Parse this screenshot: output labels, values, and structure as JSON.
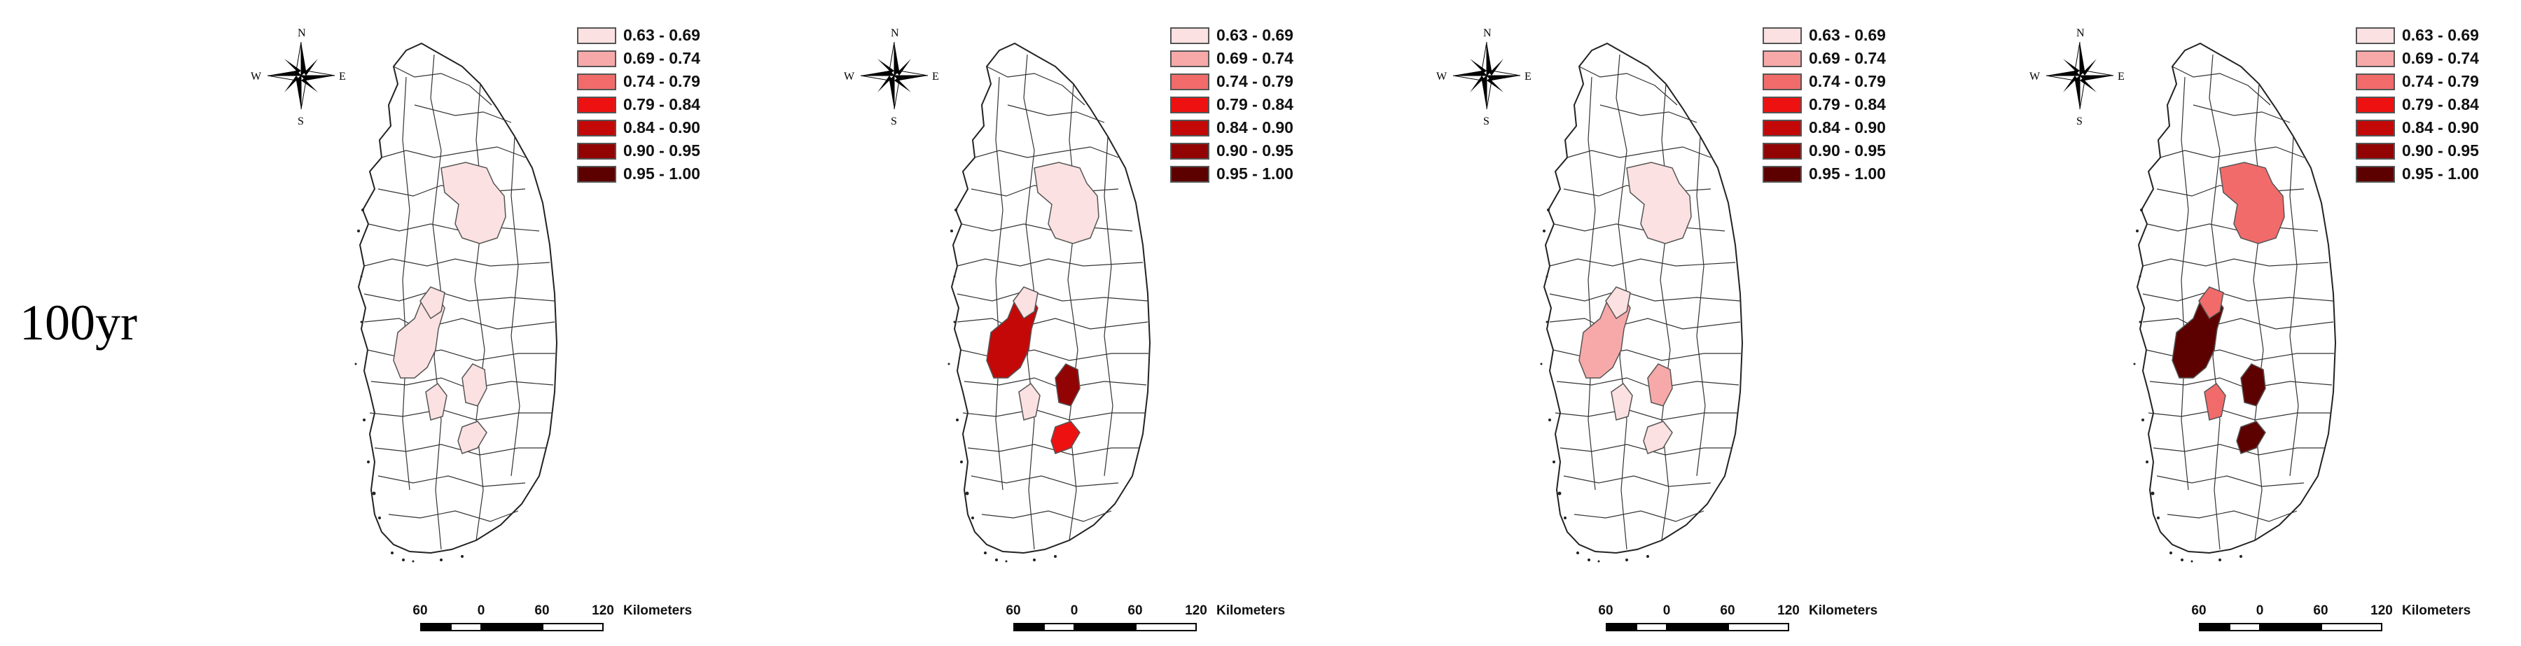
{
  "row_label": "100yr",
  "compass": {
    "n": "N",
    "s": "S",
    "e": "E",
    "w": "W",
    "icon": "north-arrow-compass-icon"
  },
  "legend": [
    {
      "label": "0.63 - 0.69",
      "color": "#fbe1e1"
    },
    {
      "label": "0.69 - 0.74",
      "color": "#f7a9a9"
    },
    {
      "label": "0.74 - 0.79",
      "color": "#f26b6b"
    },
    {
      "label": "0.79 - 0.84",
      "color": "#ee1111"
    },
    {
      "label": "0.84 - 0.90",
      "color": "#c40808"
    },
    {
      "label": "0.90 - 0.95",
      "color": "#920404"
    },
    {
      "label": "0.95 - 1.00",
      "color": "#5c0000"
    }
  ],
  "scale": {
    "ticks": [
      "60",
      "0",
      "60",
      "120"
    ],
    "unit": "Kilometers"
  },
  "panels": [
    {
      "zones": {
        "northeast": 0,
        "midwest": 0,
        "central": 0,
        "east": 0,
        "southwest": 0,
        "southeast": 0
      }
    },
    {
      "zones": {
        "northeast": 0,
        "midwest": 4,
        "central": 0,
        "east": 5,
        "southwest": 0,
        "southeast": 3
      }
    },
    {
      "zones": {
        "northeast": 0,
        "midwest": 1,
        "central": 0,
        "east": 1,
        "southwest": 0,
        "southeast": 0
      }
    },
    {
      "zones": {
        "northeast": 2,
        "midwest": 6,
        "central": 2,
        "east": 6,
        "southwest": 2,
        "southeast": 6
      }
    }
  ]
}
